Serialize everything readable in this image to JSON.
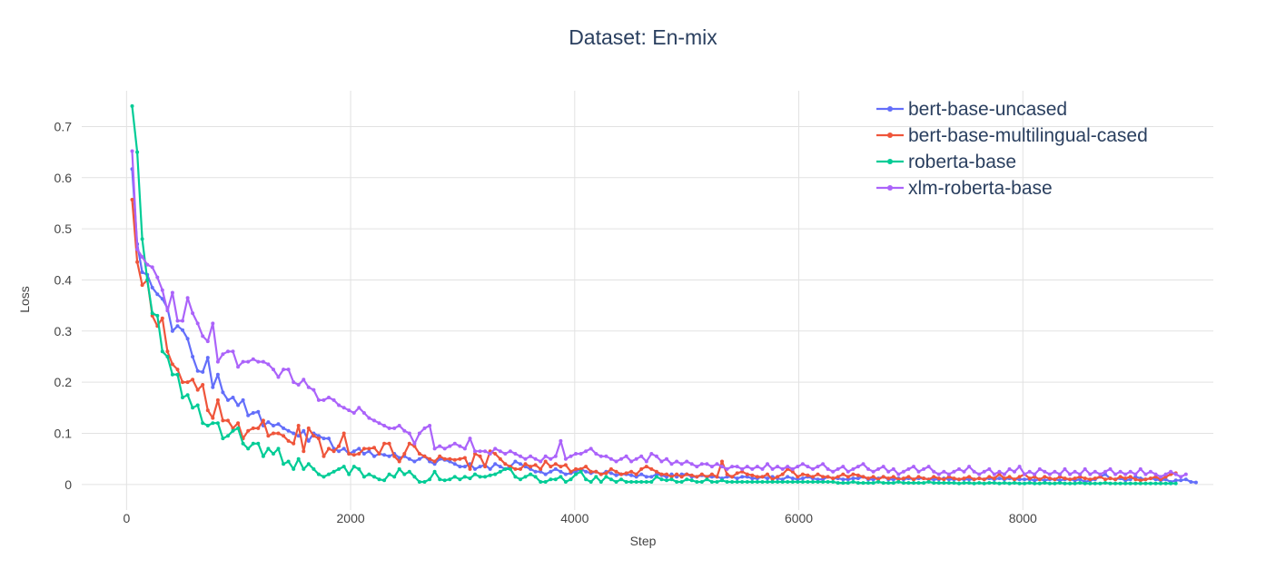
{
  "chart_data": {
    "type": "line",
    "title": "Dataset: En-mix",
    "xlabel": "Step",
    "ylabel": "Loss",
    "xlim": [
      -400,
      9700
    ],
    "ylim": [
      -0.05,
      0.77
    ],
    "x_ticks": [
      0,
      2000,
      4000,
      6000,
      8000
    ],
    "x_tick_labels": [
      "0",
      "2000",
      "4000",
      "6000",
      "8000"
    ],
    "y_ticks": [
      0,
      0.1,
      0.2,
      0.3,
      0.4,
      0.5,
      0.6,
      0.7
    ],
    "y_tick_labels": [
      "0",
      "0.1",
      "0.2",
      "0.3",
      "0.4",
      "0.5",
      "0.6",
      "0.7"
    ],
    "grid": true,
    "legend_position": "top-right",
    "x_start": 50,
    "x_step": 45,
    "series": [
      {
        "name": "bert-base-uncased",
        "color": "#636efa",
        "values": [
          0.617,
          0.47,
          0.415,
          0.41,
          0.385,
          0.372,
          0.363,
          0.345,
          0.3,
          0.31,
          0.302,
          0.285,
          0.25,
          0.222,
          0.22,
          0.248,
          0.19,
          0.215,
          0.18,
          0.165,
          0.17,
          0.155,
          0.165,
          0.135,
          0.14,
          0.142,
          0.115,
          0.122,
          0.115,
          0.118,
          0.11,
          0.105,
          0.1,
          0.095,
          0.105,
          0.085,
          0.1,
          0.095,
          0.09,
          0.09,
          0.07,
          0.065,
          0.07,
          0.06,
          0.065,
          0.07,
          0.06,
          0.065,
          0.055,
          0.06,
          0.058,
          0.055,
          0.06,
          0.052,
          0.055,
          0.05,
          0.045,
          0.05,
          0.055,
          0.045,
          0.04,
          0.05,
          0.048,
          0.045,
          0.04,
          0.035,
          0.035,
          0.04,
          0.03,
          0.035,
          0.038,
          0.03,
          0.04,
          0.035,
          0.03,
          0.035,
          0.045,
          0.04,
          0.035,
          0.03,
          0.025,
          0.025,
          0.02,
          0.025,
          0.03,
          0.025,
          0.02,
          0.022,
          0.025,
          0.03,
          0.025,
          0.022,
          0.025,
          0.02,
          0.025,
          0.022,
          0.018,
          0.02,
          0.02,
          0.018,
          0.015,
          0.02,
          0.015,
          0.015,
          0.02,
          0.018,
          0.015,
          0.02,
          0.015,
          0.02,
          0.02,
          0.015,
          0.015,
          0.018,
          0.015,
          0.015,
          0.015,
          0.012,
          0.015,
          0.015,
          0.012,
          0.015,
          0.015,
          0.012,
          0.012,
          0.015,
          0.012,
          0.015,
          0.012,
          0.01,
          0.015,
          0.012,
          0.01,
          0.012,
          0.015,
          0.012,
          0.01,
          0.01,
          0.015,
          0.012,
          0.012,
          0.01,
          0.01,
          0.012,
          0.012,
          0.015,
          0.01,
          0.01,
          0.012,
          0.015,
          0.01,
          0.01,
          0.012,
          0.01,
          0.012,
          0.01,
          0.012,
          0.012,
          0.01,
          0.01,
          0.01,
          0.012,
          0.01,
          0.01,
          0.01,
          0.01,
          0.01,
          0.01,
          0.012,
          0.01,
          0.012,
          0.01,
          0.012,
          0.01,
          0.012,
          0.01,
          0.01,
          0.01,
          0.01,
          0.008,
          0.01,
          0.008,
          0.01,
          0.01,
          0.008,
          0.01,
          0.01,
          0.008,
          0.01,
          0.005,
          0.008,
          0.01,
          0.015,
          0.02,
          0.012,
          0.01,
          0.012,
          0.008,
          0.01,
          0.015,
          0.012,
          0.01,
          0.012,
          0.01,
          0.008,
          0.01,
          0.005,
          0.008,
          0.008,
          0.01,
          0.005,
          0.004
        ]
      },
      {
        "name": "bert-base-multilingual-cased",
        "color": "#ef553b",
        "values": [
          0.557,
          0.435,
          0.39,
          0.4,
          0.33,
          0.31,
          0.325,
          0.26,
          0.235,
          0.225,
          0.2,
          0.2,
          0.205,
          0.185,
          0.195,
          0.145,
          0.13,
          0.165,
          0.125,
          0.125,
          0.11,
          0.12,
          0.09,
          0.105,
          0.11,
          0.11,
          0.125,
          0.095,
          0.1,
          0.1,
          0.095,
          0.085,
          0.08,
          0.115,
          0.065,
          0.11,
          0.095,
          0.09,
          0.055,
          0.07,
          0.065,
          0.075,
          0.1,
          0.06,
          0.058,
          0.06,
          0.07,
          0.07,
          0.072,
          0.06,
          0.08,
          0.08,
          0.055,
          0.045,
          0.06,
          0.08,
          0.075,
          0.06,
          0.055,
          0.05,
          0.045,
          0.055,
          0.05,
          0.05,
          0.048,
          0.05,
          0.052,
          0.03,
          0.06,
          0.055,
          0.035,
          0.065,
          0.06,
          0.05,
          0.04,
          0.035,
          0.03,
          0.03,
          0.04,
          0.035,
          0.038,
          0.03,
          0.045,
          0.035,
          0.04,
          0.035,
          0.038,
          0.025,
          0.03,
          0.03,
          0.035,
          0.025,
          0.025,
          0.02,
          0.022,
          0.03,
          0.025,
          0.02,
          0.022,
          0.025,
          0.02,
          0.03,
          0.035,
          0.03,
          0.025,
          0.02,
          0.02,
          0.015,
          0.02,
          0.015,
          0.02,
          0.018,
          0.015,
          0.02,
          0.015,
          0.02,
          0.015,
          0.045,
          0.02,
          0.015,
          0.022,
          0.025,
          0.02,
          0.018,
          0.015,
          0.015,
          0.02,
          0.01,
          0.015,
          0.02,
          0.03,
          0.025,
          0.015,
          0.02,
          0.018,
          0.015,
          0.02,
          0.015,
          0.015,
          0.012,
          0.015,
          0.02,
          0.015,
          0.02,
          0.018,
          0.015,
          0.012,
          0.015,
          0.01,
          0.015,
          0.012,
          0.015,
          0.01,
          0.012,
          0.015,
          0.01,
          0.015,
          0.012,
          0.01,
          0.015,
          0.012,
          0.01,
          0.015,
          0.012,
          0.01,
          0.012,
          0.015,
          0.01,
          0.012,
          0.01,
          0.015,
          0.012,
          0.02,
          0.012,
          0.015,
          0.01,
          0.015,
          0.02,
          0.012,
          0.015,
          0.01,
          0.015,
          0.012,
          0.01,
          0.015,
          0.012,
          0.01,
          0.012,
          0.015,
          0.012,
          0.01,
          0.012,
          0.015,
          0.01,
          0.012,
          0.01,
          0.015,
          0.012,
          0.015,
          0.01,
          0.008,
          0.01,
          0.012,
          0.015,
          0.01,
          0.015,
          0.02,
          0.022
        ]
      },
      {
        "name": "roberta-base",
        "color": "#00cc96",
        "values": [
          0.74,
          0.65,
          0.48,
          0.4,
          0.335,
          0.33,
          0.26,
          0.25,
          0.215,
          0.215,
          0.17,
          0.175,
          0.15,
          0.155,
          0.12,
          0.115,
          0.12,
          0.12,
          0.09,
          0.095,
          0.105,
          0.11,
          0.08,
          0.07,
          0.08,
          0.08,
          0.055,
          0.07,
          0.06,
          0.07,
          0.04,
          0.045,
          0.03,
          0.05,
          0.03,
          0.04,
          0.03,
          0.02,
          0.015,
          0.02,
          0.025,
          0.03,
          0.035,
          0.02,
          0.035,
          0.03,
          0.015,
          0.02,
          0.015,
          0.01,
          0.008,
          0.02,
          0.015,
          0.03,
          0.02,
          0.025,
          0.015,
          0.005,
          0.005,
          0.01,
          0.025,
          0.01,
          0.008,
          0.01,
          0.015,
          0.01,
          0.015,
          0.012,
          0.02,
          0.015,
          0.015,
          0.018,
          0.02,
          0.025,
          0.03,
          0.03,
          0.015,
          0.01,
          0.015,
          0.02,
          0.015,
          0.005,
          0.005,
          0.01,
          0.01,
          0.015,
          0.005,
          0.01,
          0.02,
          0.025,
          0.01,
          0.005,
          0.015,
          0.005,
          0.015,
          0.01,
          0.005,
          0.01,
          0.005,
          0.005,
          0.005,
          0.005,
          0.005,
          0.005,
          0.015,
          0.01,
          0.008,
          0.01,
          0.005,
          0.005,
          0.01,
          0.008,
          0.005,
          0.005,
          0.01,
          0.005,
          0.005,
          0.008,
          0.005,
          0.005,
          0.005,
          0.005,
          0.005,
          0.005,
          0.005,
          0.005,
          0.005,
          0.005,
          0.005,
          0.005,
          0.005,
          0.005,
          0.005,
          0.005,
          0.005,
          0.005,
          0.005,
          0.005,
          0.005,
          0.005,
          0.003,
          0.003,
          0.003,
          0.005,
          0.003,
          0.003,
          0.003,
          0.003,
          0.005,
          0.003,
          0.003,
          0.003,
          0.005,
          0.003,
          0.003,
          0.003,
          0.003,
          0.003,
          0.005,
          0.003,
          0.003,
          0.003,
          0.003,
          0.003,
          0.002,
          0.003,
          0.003,
          0.002,
          0.003,
          0.002,
          0.003,
          0.003,
          0.002,
          0.003,
          0.002,
          0.003,
          0.002,
          0.002,
          0.003,
          0.002,
          0.002,
          0.003,
          0.002,
          0.002,
          0.003,
          0.002,
          0.002,
          0.002,
          0.003,
          0.002,
          0.002,
          0.002,
          0.002,
          0.003,
          0.002,
          0.002,
          0.002,
          0.002,
          0.002,
          0.002,
          0.002,
          0.002,
          0.002,
          0.002,
          0.002,
          0.002,
          0.002,
          0.002
        ]
      },
      {
        "name": "xlm-roberta-base",
        "color": "#ab63fa",
        "values": [
          0.652,
          0.46,
          0.445,
          0.43,
          0.425,
          0.405,
          0.38,
          0.34,
          0.375,
          0.32,
          0.32,
          0.365,
          0.335,
          0.315,
          0.29,
          0.28,
          0.315,
          0.24,
          0.255,
          0.26,
          0.26,
          0.23,
          0.24,
          0.24,
          0.245,
          0.24,
          0.24,
          0.235,
          0.225,
          0.21,
          0.225,
          0.225,
          0.2,
          0.195,
          0.205,
          0.19,
          0.185,
          0.165,
          0.165,
          0.17,
          0.165,
          0.155,
          0.15,
          0.145,
          0.14,
          0.15,
          0.14,
          0.13,
          0.125,
          0.12,
          0.115,
          0.11,
          0.11,
          0.115,
          0.105,
          0.1,
          0.08,
          0.1,
          0.11,
          0.115,
          0.07,
          0.075,
          0.07,
          0.075,
          0.08,
          0.075,
          0.07,
          0.09,
          0.065,
          0.065,
          0.065,
          0.06,
          0.07,
          0.065,
          0.06,
          0.065,
          0.06,
          0.055,
          0.05,
          0.055,
          0.05,
          0.045,
          0.055,
          0.05,
          0.055,
          0.085,
          0.05,
          0.055,
          0.06,
          0.06,
          0.065,
          0.07,
          0.06,
          0.055,
          0.055,
          0.05,
          0.045,
          0.05,
          0.055,
          0.045,
          0.05,
          0.055,
          0.045,
          0.06,
          0.055,
          0.045,
          0.05,
          0.04,
          0.045,
          0.04,
          0.045,
          0.04,
          0.035,
          0.04,
          0.04,
          0.035,
          0.04,
          0.035,
          0.03,
          0.035,
          0.035,
          0.03,
          0.035,
          0.03,
          0.035,
          0.03,
          0.04,
          0.03,
          0.035,
          0.03,
          0.035,
          0.03,
          0.035,
          0.04,
          0.035,
          0.03,
          0.035,
          0.04,
          0.03,
          0.025,
          0.03,
          0.035,
          0.025,
          0.03,
          0.035,
          0.04,
          0.03,
          0.025,
          0.03,
          0.035,
          0.025,
          0.03,
          0.02,
          0.025,
          0.03,
          0.035,
          0.025,
          0.03,
          0.035,
          0.025,
          0.02,
          0.025,
          0.02,
          0.025,
          0.03,
          0.025,
          0.035,
          0.025,
          0.02,
          0.025,
          0.03,
          0.02,
          0.025,
          0.02,
          0.03,
          0.025,
          0.035,
          0.02,
          0.025,
          0.02,
          0.03,
          0.025,
          0.02,
          0.025,
          0.02,
          0.03,
          0.02,
          0.025,
          0.02,
          0.03,
          0.02,
          0.025,
          0.02,
          0.025,
          0.03,
          0.02,
          0.025,
          0.02,
          0.025,
          0.02,
          0.03,
          0.02,
          0.025,
          0.02,
          0.015,
          0.02,
          0.025,
          0.02,
          0.015,
          0.02
        ]
      }
    ]
  }
}
